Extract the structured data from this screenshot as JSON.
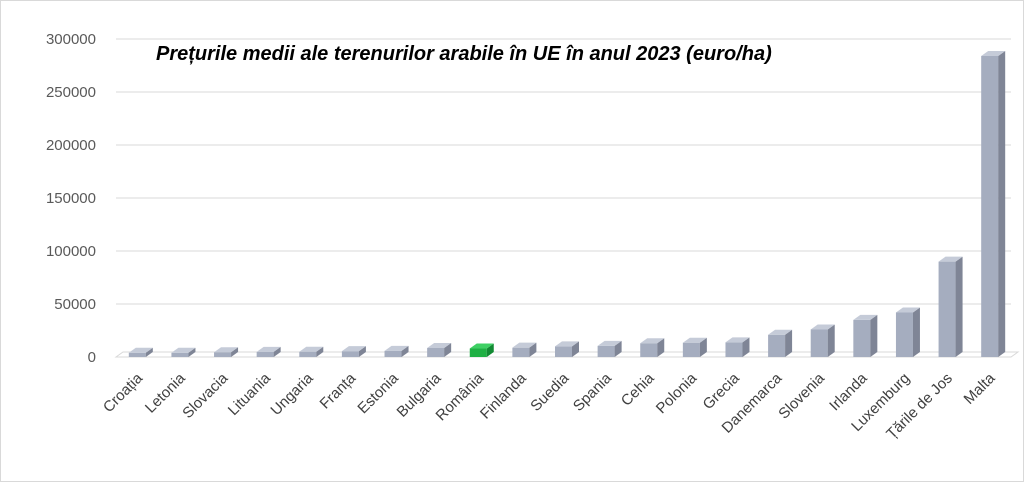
{
  "chart_data": {
    "type": "bar",
    "title": "Prețurile medii ale terenurilor arabile în UE în anul 2023 (euro/ha)",
    "xlabel": "",
    "ylabel": "",
    "ylim": [
      0,
      300000
    ],
    "yticks": [
      0,
      50000,
      100000,
      150000,
      200000,
      250000,
      300000
    ],
    "grid": true,
    "legend": "none",
    "categories": [
      "Croația",
      "Letonia",
      "Slovacia",
      "Lituania",
      "Ungaria",
      "Franța",
      "Estonia",
      "Bulgaria",
      "România",
      "Finlanda",
      "Suedia",
      "Spania",
      "Cehia",
      "Polonia",
      "Grecia",
      "Danemarca",
      "Slovenia",
      "Irlanda",
      "Luxemburg",
      "Țările de Jos",
      "Malta"
    ],
    "values": [
      4000,
      4000,
      4500,
      4800,
      5000,
      5500,
      5800,
      8500,
      8000,
      8800,
      10000,
      10500,
      13000,
      13500,
      13800,
      21000,
      26000,
      35000,
      42000,
      90000,
      284000
    ],
    "highlight": "România",
    "colors": {
      "bar": "#a5adbf",
      "bar_side": "#7f8596",
      "bar_top": "#c5cbd8",
      "highlight": "#1fb044",
      "highlight_side": "#128a33",
      "highlight_top": "#3fd064",
      "grid": "#d9d9d9",
      "floor": "#d9d9d9"
    }
  }
}
